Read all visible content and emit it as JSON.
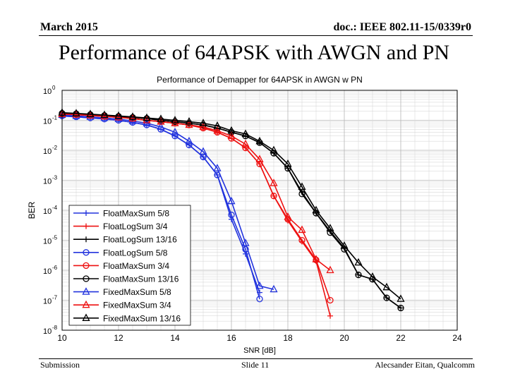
{
  "header": {
    "date": "March 2015",
    "doc_id": "doc.: IEEE 802.11-15/0339r0"
  },
  "slide": {
    "title": "Performance of 64APSK with AWGN and PN"
  },
  "footer": {
    "left": "Submission",
    "center": "Slide 11",
    "right": "Alecsander Eitan, Qualcomm"
  },
  "chart_data": {
    "type": "line",
    "title": "Performance of Demapper for 64APSK in AWGN w PN",
    "xlabel": "SNR [dB]",
    "ylabel": "BER",
    "xlim": [
      10,
      24
    ],
    "ylim": [
      1e-08,
      1
    ],
    "yscale": "log",
    "xticks": [
      10,
      12,
      14,
      16,
      18,
      20,
      22,
      24
    ],
    "yticks": [
      {
        "value": 1.0,
        "base": "10",
        "exp": "0"
      },
      {
        "value": 0.1,
        "base": "10",
        "exp": "-1"
      },
      {
        "value": 0.01,
        "base": "10",
        "exp": "-2"
      },
      {
        "value": 0.001,
        "base": "10",
        "exp": "-3"
      },
      {
        "value": 0.0001,
        "base": "10",
        "exp": "-4"
      },
      {
        "value": 1e-05,
        "base": "10",
        "exp": "-5"
      },
      {
        "value": 1e-06,
        "base": "10",
        "exp": "-6"
      },
      {
        "value": 1e-07,
        "base": "10",
        "exp": "-7"
      },
      {
        "value": 1e-08,
        "base": "10",
        "exp": "-8"
      }
    ],
    "grid": true,
    "legend_position": "bottom-left",
    "series": [
      {
        "name": "FloatMaxSum 5/8",
        "color": "#2233dd",
        "marker": "plus",
        "x": [
          10,
          10.5,
          11,
          11.5,
          12,
          12.5,
          13,
          13.5,
          14,
          14.5,
          15,
          15.5,
          16,
          16.5,
          17
        ],
        "y": [
          0.14,
          0.13,
          0.12,
          0.11,
          0.1,
          0.085,
          0.07,
          0.05,
          0.03,
          0.015,
          0.006,
          0.0015,
          5e-05,
          3.5e-06,
          1.8e-07
        ]
      },
      {
        "name": "FloatLogSum 3/4",
        "color": "#ee1111",
        "marker": "plus",
        "x": [
          10,
          10.5,
          11,
          11.5,
          12,
          12.5,
          13,
          13.5,
          14,
          14.5,
          15,
          15.5,
          16,
          16.5,
          17,
          17.5,
          18,
          18.5,
          19,
          19.5
        ],
        "y": [
          0.16,
          0.155,
          0.145,
          0.135,
          0.125,
          0.115,
          0.1,
          0.09,
          0.08,
          0.07,
          0.055,
          0.04,
          0.025,
          0.012,
          0.0035,
          0.0003,
          4.5e-05,
          9e-06,
          2e-06,
          3e-08
        ]
      },
      {
        "name": "FloatLogSum 13/16",
        "color": "#000000",
        "marker": "plus",
        "x": [
          10,
          10.5,
          11,
          11.5,
          12,
          12.5,
          13,
          13.5,
          14,
          14.5,
          15,
          15.5,
          16,
          16.5,
          17,
          17.5,
          18,
          18.5,
          19,
          19.5,
          20,
          20.5,
          21,
          21.5,
          22
        ],
        "y": [
          0.17,
          0.165,
          0.155,
          0.145,
          0.135,
          0.125,
          0.115,
          0.1,
          0.09,
          0.08,
          0.07,
          0.055,
          0.04,
          0.03,
          0.018,
          0.008,
          0.0025,
          0.0004,
          8e-05,
          2e-05,
          5.5e-06,
          7e-07,
          5e-07,
          1.2e-07,
          5.5e-08
        ]
      },
      {
        "name": "FloatLogSum 5/8",
        "color": "#2233dd",
        "marker": "circle",
        "x": [
          10,
          10.5,
          11,
          11.5,
          12,
          12.5,
          13,
          13.5,
          14,
          14.5,
          15,
          15.5,
          16,
          16.5,
          17
        ],
        "y": [
          0.14,
          0.13,
          0.12,
          0.11,
          0.1,
          0.085,
          0.07,
          0.05,
          0.03,
          0.015,
          0.006,
          0.0015,
          7e-05,
          5e-06,
          1.1e-07
        ]
      },
      {
        "name": "FloatMaxSum 3/4",
        "color": "#ee1111",
        "marker": "circle",
        "x": [
          10,
          10.5,
          11,
          11.5,
          12,
          12.5,
          13,
          13.5,
          14,
          14.5,
          15,
          15.5,
          16,
          16.5,
          17,
          17.5,
          18,
          18.5,
          19,
          19.5
        ],
        "y": [
          0.16,
          0.155,
          0.145,
          0.135,
          0.125,
          0.115,
          0.1,
          0.09,
          0.08,
          0.07,
          0.055,
          0.04,
          0.025,
          0.012,
          0.0035,
          0.0003,
          5e-05,
          1e-05,
          2.2e-06,
          1e-07
        ]
      },
      {
        "name": "FloatMaxSum 13/16",
        "color": "#000000",
        "marker": "circle",
        "x": [
          10,
          10.5,
          11,
          11.5,
          12,
          12.5,
          13,
          13.5,
          14,
          14.5,
          15,
          15.5,
          16,
          16.5,
          17,
          17.5,
          18,
          18.5,
          19,
          19.5,
          20,
          20.5,
          21,
          21.5,
          22
        ],
        "y": [
          0.17,
          0.165,
          0.155,
          0.145,
          0.135,
          0.125,
          0.115,
          0.1,
          0.09,
          0.08,
          0.07,
          0.055,
          0.04,
          0.03,
          0.018,
          0.008,
          0.0025,
          0.00035,
          8e-05,
          1.8e-05,
          5e-06,
          7e-07,
          5e-07,
          1.2e-07,
          5.5e-08
        ]
      },
      {
        "name": "FixedMaxSum 5/8",
        "color": "#2233dd",
        "marker": "triangle",
        "x": [
          10,
          10.5,
          11,
          11.5,
          12,
          12.5,
          13,
          13.5,
          14,
          14.5,
          15,
          15.5,
          16,
          16.5,
          17,
          17.5
        ],
        "y": [
          0.15,
          0.14,
          0.13,
          0.12,
          0.11,
          0.095,
          0.08,
          0.06,
          0.04,
          0.02,
          0.009,
          0.0025,
          0.0002,
          8e-06,
          3e-07,
          2.3e-07
        ]
      },
      {
        "name": "FixedMaxSum 3/4",
        "color": "#ee1111",
        "marker": "triangle",
        "x": [
          10,
          10.5,
          11,
          11.5,
          12,
          12.5,
          13,
          13.5,
          14,
          14.5,
          15,
          15.5,
          16,
          16.5,
          17,
          17.5,
          18,
          18.5,
          19,
          19.5
        ],
        "y": [
          0.16,
          0.155,
          0.145,
          0.135,
          0.125,
          0.115,
          0.1,
          0.09,
          0.08,
          0.07,
          0.06,
          0.045,
          0.03,
          0.016,
          0.005,
          0.0008,
          6e-05,
          2.2e-05,
          2.3e-06,
          1e-06
        ]
      },
      {
        "name": "FixedMaxSum 13/16",
        "color": "#000000",
        "marker": "triangle",
        "x": [
          10,
          10.5,
          11,
          11.5,
          12,
          12.5,
          13,
          13.5,
          14,
          14.5,
          15,
          15.5,
          16,
          16.5,
          17,
          17.5,
          18,
          18.5,
          19,
          19.5,
          20,
          20.5,
          21,
          21.5,
          22
        ],
        "y": [
          0.18,
          0.17,
          0.16,
          0.15,
          0.14,
          0.13,
          0.12,
          0.11,
          0.1,
          0.09,
          0.08,
          0.065,
          0.045,
          0.035,
          0.02,
          0.01,
          0.0035,
          0.0006,
          0.0001,
          2.5e-05,
          6.5e-06,
          1.8e-06,
          6e-07,
          2.7e-07,
          1.1e-07
        ]
      }
    ]
  }
}
